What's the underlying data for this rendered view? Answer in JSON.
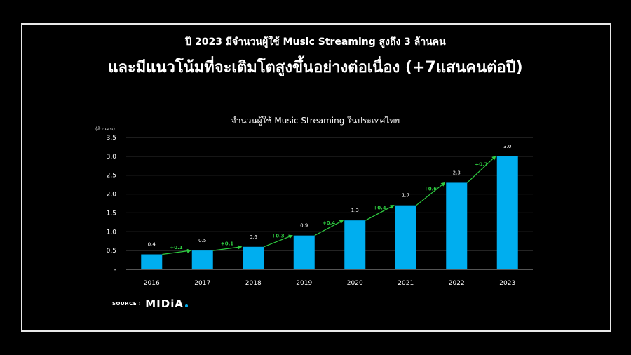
{
  "page": {
    "headline_line1": "ปี 2023 มีจำนวนผู้ใช้ Music Streaming สูงถึง 3 ล้านคน",
    "headline_line2": "และมีแนวโน้มที่จะเติมโตสูงขึ้นอย่างต่อเนื่อง (+7แสนคนต่อปี)"
  },
  "source": {
    "label": "SOURCE :",
    "logo": "MIDiA"
  },
  "colors": {
    "bar": "#00aeef",
    "growth": "#2ecc40",
    "background": "#000000",
    "grid": "#3a3a3a"
  },
  "chart_data": {
    "type": "bar",
    "title": "จำนวนผู้ใช้ Music Streaming ในประเทศไทย",
    "ylabel": "(ล้านคน)",
    "categories": [
      "2016",
      "2017",
      "2018",
      "2019",
      "2020",
      "2021",
      "2022",
      "2023"
    ],
    "values": [
      0.4,
      0.5,
      0.6,
      0.9,
      1.3,
      1.7,
      2.3,
      3.0
    ],
    "value_labels": [
      "0.4",
      "0.5",
      "0.6",
      "0.9",
      "1.3",
      "1.7",
      "2.3",
      "3.0"
    ],
    "growth_labels": [
      "+0.1",
      "+0.1",
      "+0.3",
      "+0.4",
      "+0.4",
      "+0.6",
      "+0.7"
    ],
    "ylim": [
      0,
      3.5
    ],
    "yticks": [
      0,
      0.5,
      1.0,
      1.5,
      2.0,
      2.5,
      3.0,
      3.5
    ],
    "ytick_labels": [
      "-",
      "0.5",
      "1.0",
      "1.5",
      "2.0",
      "2.5",
      "3.0",
      "3.5"
    ],
    "grid": true
  }
}
